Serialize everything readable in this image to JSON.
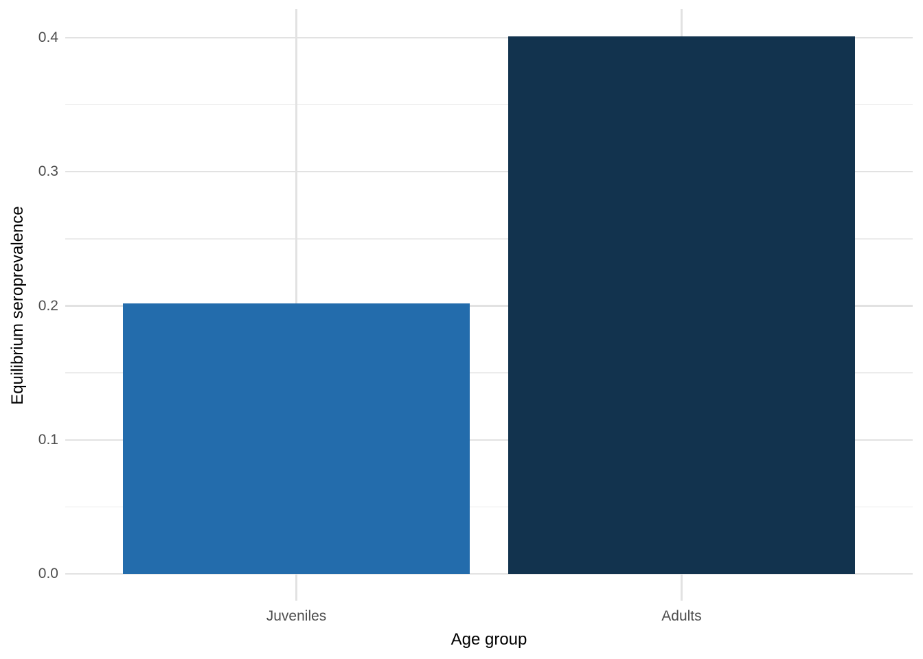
{
  "chart_data": {
    "type": "bar",
    "title": "",
    "xlabel": "Age group",
    "ylabel": "Equilibrium seroprevalence",
    "categories": [
      "Juveniles",
      "Adults"
    ],
    "values": [
      0.202,
      0.401
    ],
    "bar_colors": [
      "#236CAC",
      "#12334E"
    ],
    "ylim": [
      0,
      0.42
    ],
    "yticks": [
      0,
      0.1,
      0.2,
      0.3,
      0.4
    ],
    "ytick_labels": [
      "0.0",
      "0.1",
      "0.2",
      "0.3",
      "0.4"
    ],
    "grid": "horizontal major+minor gridlines; vertical major gridline at each category center; no axis lines; no ticks",
    "legend": "none",
    "background": "#FFFFFF",
    "tick_label_color": "#4D4D4D",
    "axis_title_color": "#000000"
  }
}
